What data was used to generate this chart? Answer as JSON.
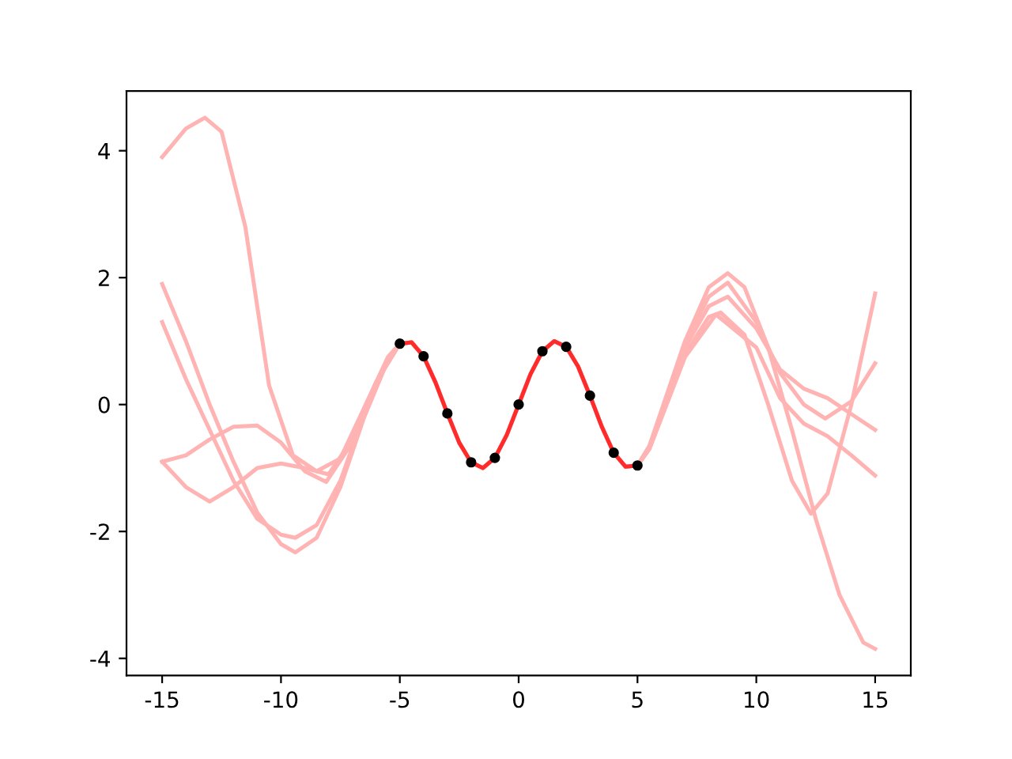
{
  "chart_data": {
    "type": "line",
    "xlim": [
      -16.5,
      16.5
    ],
    "ylim": [
      -4.27,
      4.94
    ],
    "xticks": [
      -15,
      -10,
      -5,
      0,
      5,
      10,
      15
    ],
    "yticks": [
      -4,
      -2,
      0,
      2,
      4
    ],
    "grid": false,
    "legend": false,
    "marker": "none",
    "line_style": "solid",
    "series": [
      {
        "color": "#ffb3b3",
        "x": [
          -15,
          -14,
          -13.2,
          -12.5,
          -11.5,
          -10.5,
          -9.5,
          -8.5,
          -8,
          -7,
          -6,
          -5,
          -4.5,
          -4,
          -3.5,
          -3,
          -2.5,
          -2,
          -1.5,
          -1,
          -0.5,
          0,
          0.5,
          1,
          1.5,
          2,
          2.5,
          3,
          3.5,
          4,
          4.5,
          5,
          5.5,
          6,
          7,
          8,
          8.5,
          9.5,
          10.5,
          11.5,
          12.3,
          13,
          14,
          15
        ],
        "values": [
          3.9,
          4.35,
          4.52,
          4.3,
          2.8,
          0.3,
          -0.8,
          -1.05,
          -1.1,
          -0.55,
          0.35,
          0.96,
          0.98,
          0.76,
          0.35,
          -0.14,
          -0.6,
          -0.91,
          -1.0,
          -0.84,
          -0.48,
          0,
          0.48,
          0.84,
          1.0,
          0.91,
          0.6,
          0.14,
          -0.35,
          -0.76,
          -0.98,
          -0.96,
          -0.7,
          -0.2,
          0.8,
          1.38,
          1.45,
          1.1,
          0,
          -1.2,
          -1.72,
          -1.4,
          0,
          1.75
        ]
      },
      {
        "color": "#ffb3b3",
        "x": [
          -15,
          -14,
          -13,
          -12,
          -11,
          -10,
          -9.4,
          -8.5,
          -7.5,
          -6.5,
          -5.5,
          -5,
          -4.5,
          -4,
          -3.5,
          -3,
          -2.5,
          -2,
          -1.5,
          -1,
          -0.5,
          0,
          0.5,
          1,
          1.5,
          2,
          2.5,
          3,
          3.5,
          4,
          4.5,
          5,
          5.5,
          6,
          7,
          8,
          8.8,
          9.5,
          10.5,
          11.5,
          12.5,
          13.5,
          14.5,
          15
        ],
        "values": [
          1.9,
          1.0,
          0.0,
          -0.9,
          -1.7,
          -2.2,
          -2.33,
          -2.1,
          -1.3,
          -0.2,
          0.7,
          0.96,
          0.98,
          0.76,
          0.35,
          -0.14,
          -0.6,
          -0.91,
          -1.0,
          -0.84,
          -0.48,
          0,
          0.48,
          0.84,
          1.0,
          0.91,
          0.6,
          0.14,
          -0.35,
          -0.76,
          -0.98,
          -0.96,
          -0.65,
          -0.1,
          1.0,
          1.85,
          2.07,
          1.85,
          0.9,
          -0.4,
          -1.8,
          -3.0,
          -3.75,
          -3.85
        ]
      },
      {
        "color": "#ffb3b3",
        "x": [
          -15,
          -14,
          -13,
          -12,
          -11,
          -10,
          -9.4,
          -8.5,
          -7.5,
          -6.5,
          -5.5,
          -5,
          -4.5,
          -4,
          -3.5,
          -3,
          -2.5,
          -2,
          -1.5,
          -1,
          -0.5,
          0,
          0.5,
          1,
          1.5,
          2,
          2.5,
          3,
          3.5,
          4,
          4.5,
          5,
          5.5,
          6,
          7,
          8,
          8.8,
          10,
          11,
          12,
          12.9,
          14,
          15
        ],
        "values": [
          1.3,
          0.4,
          -0.4,
          -1.2,
          -1.8,
          -2.05,
          -2.1,
          -1.9,
          -1.2,
          -0.15,
          0.7,
          0.96,
          0.98,
          0.76,
          0.35,
          -0.14,
          -0.6,
          -0.91,
          -1.0,
          -0.84,
          -0.48,
          0,
          0.48,
          0.84,
          1.0,
          0.91,
          0.6,
          0.14,
          -0.35,
          -0.76,
          -0.98,
          -0.96,
          -0.68,
          -0.15,
          0.95,
          1.7,
          1.92,
          1.3,
          0.5,
          0.0,
          -0.22,
          0.05,
          0.65
        ]
      },
      {
        "color": "#ffb3b3",
        "x": [
          -15,
          -14,
          -13,
          -12,
          -11,
          -10,
          -9,
          -8.1,
          -7,
          -6,
          -5,
          -4.5,
          -4,
          -3.5,
          -3,
          -2.5,
          -2,
          -1.5,
          -1,
          -0.5,
          0,
          0.5,
          1,
          1.5,
          2,
          2.5,
          3,
          3.5,
          4,
          4.5,
          5,
          5.5,
          6,
          7,
          8,
          8.8,
          10,
          11,
          12,
          13,
          14,
          15
        ],
        "values": [
          -0.9,
          -0.8,
          -0.55,
          -0.35,
          -0.33,
          -0.6,
          -1.05,
          -1.22,
          -0.6,
          0.35,
          0.96,
          0.98,
          0.76,
          0.35,
          -0.14,
          -0.6,
          -0.91,
          -1.0,
          -0.84,
          -0.48,
          0,
          0.48,
          0.84,
          1.0,
          0.91,
          0.6,
          0.14,
          -0.35,
          -0.76,
          -0.98,
          -0.96,
          -0.68,
          -0.15,
          0.9,
          1.55,
          1.7,
          1.2,
          0.55,
          0.25,
          0.1,
          -0.15,
          -0.4
        ]
      },
      {
        "color": "#ffb3b3",
        "x": [
          -15,
          -14,
          -13,
          -12,
          -11,
          -10,
          -9,
          -8.5,
          -7.5,
          -6.5,
          -5.5,
          -5,
          -4.5,
          -4,
          -3.5,
          -3,
          -2.5,
          -2,
          -1.5,
          -1,
          -0.5,
          0,
          0.5,
          1,
          1.5,
          2,
          2.5,
          3,
          3.5,
          4,
          4.5,
          5,
          5.5,
          6,
          7,
          8.3,
          10,
          11,
          12,
          13,
          14,
          15
        ],
        "values": [
          -0.9,
          -1.3,
          -1.53,
          -1.3,
          -1.0,
          -0.93,
          -1.0,
          -1.05,
          -0.85,
          -0.05,
          0.75,
          0.96,
          0.98,
          0.76,
          0.35,
          -0.14,
          -0.6,
          -0.91,
          -1.0,
          -0.84,
          -0.48,
          0,
          0.48,
          0.84,
          1.0,
          0.91,
          0.6,
          0.14,
          -0.35,
          -0.76,
          -0.98,
          -0.96,
          -0.7,
          -0.22,
          0.75,
          1.42,
          0.9,
          0.1,
          -0.3,
          -0.5,
          -0.8,
          -1.12
        ]
      },
      {
        "color": "#ff2a2a",
        "x": [
          -5,
          -4.5,
          -4,
          -3.5,
          -3,
          -2.5,
          -2,
          -1.5,
          -1,
          -0.5,
          0,
          0.5,
          1,
          1.5,
          2,
          2.5,
          3,
          3.5,
          4,
          4.5,
          5
        ],
        "values": [
          0.96,
          0.98,
          0.76,
          0.35,
          -0.14,
          -0.6,
          -0.91,
          -1.0,
          -0.84,
          -0.48,
          0,
          0.48,
          0.84,
          1.0,
          0.91,
          0.6,
          0.14,
          -0.35,
          -0.76,
          -0.98,
          -0.96
        ]
      },
      {
        "type": "scatter",
        "color": "#000000",
        "marker": "circle",
        "x": [
          -5,
          -4,
          -3,
          -2,
          -1,
          0,
          1,
          2,
          3,
          4,
          5
        ],
        "values": [
          0.96,
          0.76,
          -0.14,
          -0.91,
          -0.84,
          0,
          0.84,
          0.91,
          0.14,
          -0.76,
          -0.96
        ]
      }
    ]
  }
}
